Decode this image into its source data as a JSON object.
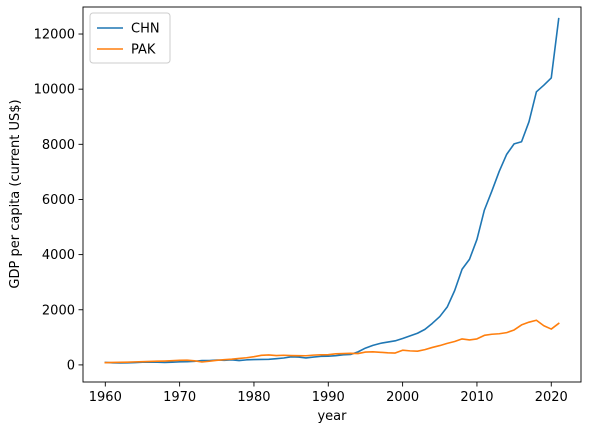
{
  "chart_data": {
    "type": "line",
    "title": "",
    "xlabel": "year",
    "ylabel": "GDP per capita (current US$)",
    "xlim": [
      1957,
      2024
    ],
    "ylim": [
      -620,
      12980
    ],
    "xticks": [
      1960,
      1970,
      1980,
      1990,
      2000,
      2010,
      2020
    ],
    "yticks": [
      0,
      2000,
      4000,
      6000,
      8000,
      10000,
      12000
    ],
    "legend_position": "top-left",
    "grid": false,
    "x": [
      1960,
      1961,
      1962,
      1963,
      1964,
      1965,
      1966,
      1967,
      1968,
      1969,
      1970,
      1971,
      1972,
      1973,
      1974,
      1975,
      1976,
      1977,
      1978,
      1979,
      1980,
      1981,
      1982,
      1983,
      1984,
      1985,
      1986,
      1987,
      1988,
      1989,
      1990,
      1991,
      1992,
      1993,
      1994,
      1995,
      1996,
      1997,
      1998,
      1999,
      2000,
      2001,
      2002,
      2003,
      2004,
      2005,
      2006,
      2007,
      2008,
      2009,
      2010,
      2011,
      2012,
      2013,
      2014,
      2015,
      2016,
      2017,
      2018,
      2019,
      2020,
      2021
    ],
    "series": [
      {
        "name": "CHN",
        "color": "#1f77b4",
        "values": [
          90,
          76,
          70,
          74,
          85,
          98,
          104,
          97,
          91,
          100,
          113,
          118,
          131,
          157,
          160,
          178,
          165,
          185,
          156,
          183,
          195,
          197,
          203,
          225,
          250,
          294,
          282,
          252,
          284,
          310,
          318,
          333,
          366,
          377,
          473,
          610,
          709,
          781,
          829,
          873,
          959,
          1053,
          1148,
          1288,
          1508,
          1753,
          2099,
          2694,
          3468,
          3832,
          4550,
          5614,
          6300,
          7020,
          7636,
          8016,
          8094,
          8817,
          9905,
          10144,
          10409,
          12556
        ]
      },
      {
        "name": "PAK",
        "color": "#ff7f0e",
        "values": [
          83,
          90,
          93,
          99,
          110,
          118,
          127,
          134,
          141,
          153,
          168,
          170,
          149,
          105,
          133,
          166,
          189,
          207,
          233,
          259,
          299,
          349,
          363,
          338,
          350,
          339,
          333,
          332,
          355,
          367,
          371,
          403,
          410,
          420,
          411,
          467,
          476,
          458,
          438,
          430,
          533,
          509,
          497,
          555,
          634,
          701,
          782,
          849,
          942,
          907,
          943,
          1072,
          1112,
          1130,
          1171,
          1267,
          1450,
          1550,
          1620,
          1420,
          1300,
          1505
        ]
      }
    ]
  }
}
